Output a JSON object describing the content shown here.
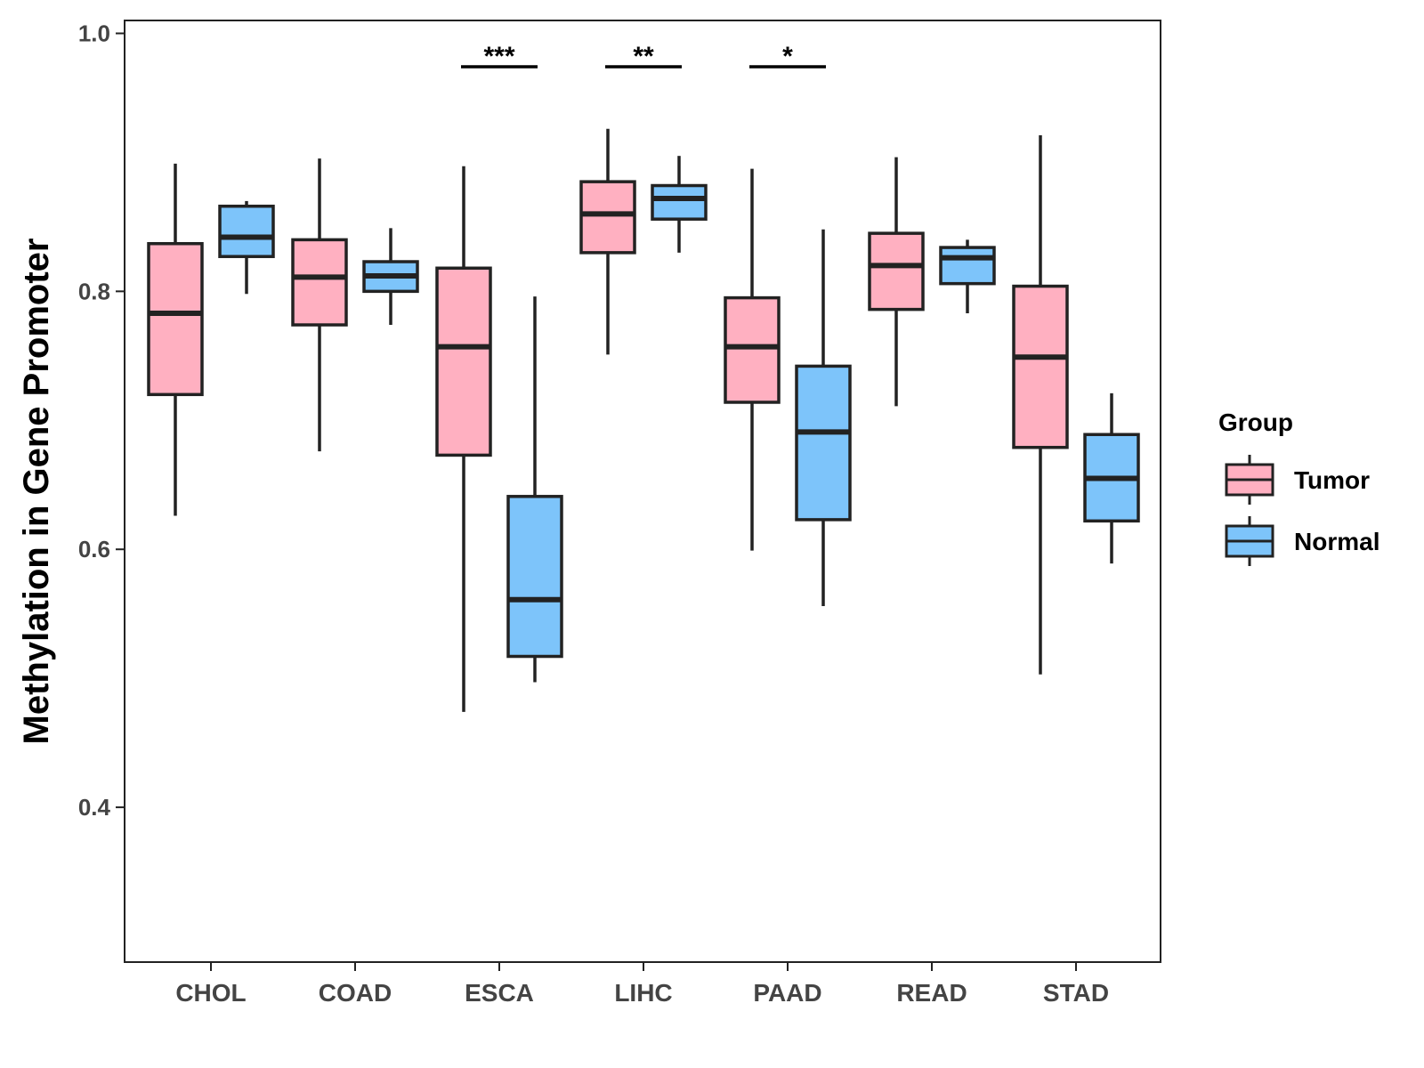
{
  "chart_data": {
    "type": "boxplot",
    "title": "",
    "xlabel": "",
    "ylabel": "Methylation in Gene Promoter",
    "ylim": [
      0.28,
      1.01
    ],
    "yticks": [
      0.4,
      0.6,
      0.8,
      1.0
    ],
    "ytick_labels": [
      "0.4",
      "0.6",
      "0.8",
      "1.0"
    ],
    "grid": false,
    "categories": [
      "CHOL",
      "COAD",
      "ESCA",
      "LIHC",
      "PAAD",
      "READ",
      "STAD"
    ],
    "legend": {
      "title": "Group",
      "position": "right"
    },
    "series": [
      {
        "name": "Tumor",
        "color": "#FFB0C1",
        "boxes": [
          {
            "min": 0.626,
            "q1": 0.72,
            "median": 0.783,
            "q3": 0.837,
            "max": 0.899
          },
          {
            "min": 0.676,
            "q1": 0.774,
            "median": 0.811,
            "q3": 0.84,
            "max": 0.903
          },
          {
            "min": 0.474,
            "q1": 0.673,
            "median": 0.757,
            "q3": 0.818,
            "max": 0.897
          },
          {
            "min": 0.751,
            "q1": 0.83,
            "median": 0.86,
            "q3": 0.885,
            "max": 0.926
          },
          {
            "min": 0.599,
            "q1": 0.714,
            "median": 0.757,
            "q3": 0.795,
            "max": 0.895
          },
          {
            "min": 0.711,
            "q1": 0.786,
            "median": 0.82,
            "q3": 0.845,
            "max": 0.904
          },
          {
            "min": 0.503,
            "q1": 0.679,
            "median": 0.749,
            "q3": 0.804,
            "max": 0.921
          }
        ]
      },
      {
        "name": "Normal",
        "color": "#7DC4FA",
        "boxes": [
          {
            "min": 0.798,
            "q1": 0.827,
            "median": 0.842,
            "q3": 0.866,
            "max": 0.87
          },
          {
            "min": 0.774,
            "q1": 0.8,
            "median": 0.812,
            "q3": 0.823,
            "max": 0.849
          },
          {
            "min": 0.497,
            "q1": 0.517,
            "median": 0.561,
            "q3": 0.641,
            "max": 0.796
          },
          {
            "min": 0.83,
            "q1": 0.856,
            "median": 0.872,
            "q3": 0.882,
            "max": 0.905
          },
          {
            "min": 0.556,
            "q1": 0.623,
            "median": 0.691,
            "q3": 0.742,
            "max": 0.848
          },
          {
            "min": 0.783,
            "q1": 0.806,
            "median": 0.826,
            "q3": 0.834,
            "max": 0.84
          },
          {
            "min": 0.589,
            "q1": 0.622,
            "median": 0.655,
            "q3": 0.689,
            "max": 0.721
          }
        ]
      }
    ],
    "significance": [
      {
        "category": "ESCA",
        "label": "***"
      },
      {
        "category": "LIHC",
        "label": "**"
      },
      {
        "category": "PAAD",
        "label": "*"
      }
    ]
  }
}
